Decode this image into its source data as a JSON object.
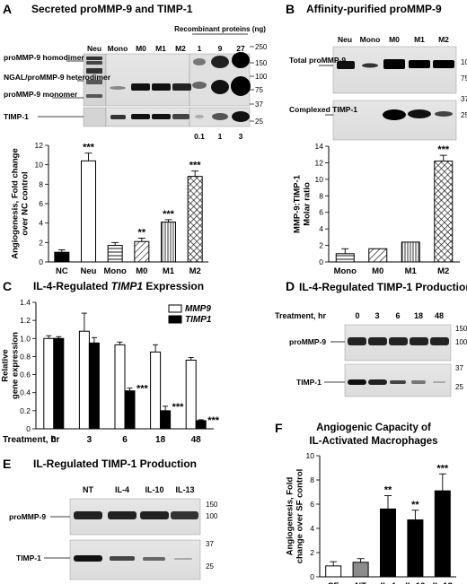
{
  "panels": {
    "A": {
      "letter": "A",
      "title": "Secreted proMMP-9 and TIMP-1",
      "lanes": [
        "Neu",
        "Mono",
        "M0",
        "M1",
        "M2"
      ],
      "recombinant_header": "Recombinant proteins (ng)",
      "recombinant_top": [
        "1",
        "9",
        "27"
      ],
      "recombinant_bottom": [
        "0.1",
        "1",
        "3"
      ],
      "band_labels": [
        "proMMP-9 homodimer",
        "NGAL/proMMP-9 heterodimer",
        "proMMP-9 monomer",
        "TIMP-1"
      ],
      "markers_top": [
        "250",
        "150",
        "100",
        "75"
      ],
      "markers_bottom": [
        "37",
        "25"
      ]
    },
    "B": {
      "letter": "B",
      "title": "Affinity-purified proMMP-9",
      "lanes": [
        "Neu",
        "Mono",
        "M0",
        "M1",
        "M2"
      ],
      "band_labels": [
        "Total proMMP-9",
        "Complexed TIMP-1"
      ],
      "markers_top": [
        "100",
        "75"
      ],
      "markers_bottom": [
        "37",
        "25"
      ]
    },
    "C": {
      "letter": "C",
      "title_prefix": "IL-4-Regulated ",
      "title_gene": "TIMP1",
      "title_suffix": " Expression",
      "treatment_label": "Treatment, hr"
    },
    "D": {
      "letter": "D",
      "title": "IL-4-Regulated TIMP-1 Production",
      "treatment_label": "Treatment, hr",
      "lanes": [
        "0",
        "3",
        "6",
        "18",
        "48"
      ],
      "band_labels": [
        "proMMP-9",
        "TIMP-1"
      ],
      "markers_top": [
        "150",
        "100"
      ],
      "markers_bottom": [
        "37",
        "25"
      ]
    },
    "E": {
      "letter": "E",
      "title": "IL-Regulated TIMP-1 Production",
      "lanes": [
        "NT",
        "IL-4",
        "IL-10",
        "IL-13"
      ],
      "band_labels": [
        "proMMP-9",
        "TIMP-1"
      ],
      "markers_top": [
        "150",
        "100"
      ],
      "markers_bottom": [
        "37",
        "25"
      ]
    },
    "F": {
      "letter": "F",
      "title_line1": "Angiogenic Capacity of",
      "title_line2": "IL-Activated Macrophages"
    }
  },
  "chart_data": [
    {
      "id": "A",
      "type": "bar",
      "categories": [
        "NC",
        "Neu",
        "Mono",
        "M0",
        "M1",
        "M2"
      ],
      "values": [
        1.0,
        10.4,
        1.7,
        2.1,
        4.1,
        8.8
      ],
      "errors": [
        0.25,
        0.8,
        0.3,
        0.35,
        0.25,
        0.55
      ],
      "significance": [
        "",
        "***",
        "",
        "**",
        "***",
        "***"
      ],
      "patterns": [
        "solid",
        "open",
        "hlines",
        "dlines",
        "vlines",
        "cross"
      ],
      "ylabel": "Angiogenesis, Fold change over NC control",
      "ylim": [
        0,
        12
      ],
      "yticks": [
        "0",
        "2",
        "4",
        "6",
        "8",
        "10",
        "12"
      ]
    },
    {
      "id": "B",
      "type": "bar",
      "categories": [
        "Mono",
        "M0",
        "M1",
        "M2"
      ],
      "values": [
        1.0,
        1.6,
        2.4,
        12.2
      ],
      "errors": [
        0.6,
        0,
        0,
        0.7
      ],
      "significance": [
        "",
        "",
        "",
        "***"
      ],
      "patterns": [
        "hlines",
        "dlines",
        "vlines",
        "cross"
      ],
      "ylabel": "MMP-9:TIMP-1 Molar ratio",
      "ylim": [
        0,
        14
      ],
      "yticks": [
        "0",
        "2",
        "4",
        "6",
        "8",
        "10",
        "12",
        "14"
      ]
    },
    {
      "id": "C",
      "type": "bar",
      "categories": [
        "0",
        "3",
        "6",
        "18",
        "48"
      ],
      "series": [
        {
          "name": "MMP9",
          "values": [
            1.0,
            1.08,
            0.93,
            0.85,
            0.76
          ],
          "errors": [
            0.03,
            0.2,
            0.03,
            0.08,
            0.03
          ],
          "fill": "open"
        },
        {
          "name": "TIMP1",
          "values": [
            1.0,
            0.95,
            0.42,
            0.2,
            0.09
          ],
          "errors": [
            0.02,
            0.06,
            0.03,
            0.05,
            0.01
          ],
          "fill": "solid"
        }
      ],
      "significance": [
        "",
        "",
        "***",
        "***",
        "***"
      ],
      "ylabel": "Relative gene expression",
      "ylim": [
        0,
        1.4
      ],
      "yticks": [
        "0",
        "0.2",
        "0.4",
        "0.6",
        "0.8",
        "1.0",
        "1.2",
        "1.4"
      ]
    },
    {
      "id": "F",
      "type": "bar",
      "categories": [
        "SF",
        "NT",
        "IL-4",
        "IL-10",
        "IL-13"
      ],
      "values": [
        0.9,
        1.2,
        5.6,
        4.7,
        7.1
      ],
      "errors": [
        0.35,
        0.3,
        1.1,
        0.8,
        1.4
      ],
      "significance": [
        "",
        "",
        "**",
        "**",
        "***"
      ],
      "patterns": [
        "open",
        "gray",
        "solid",
        "solid",
        "solid"
      ],
      "ylabel": "Angiogenesis, Fold change over SF control",
      "ylim": [
        0,
        10
      ],
      "yticks": [
        "0",
        "2",
        "4",
        "6",
        "8",
        "10"
      ]
    }
  ]
}
